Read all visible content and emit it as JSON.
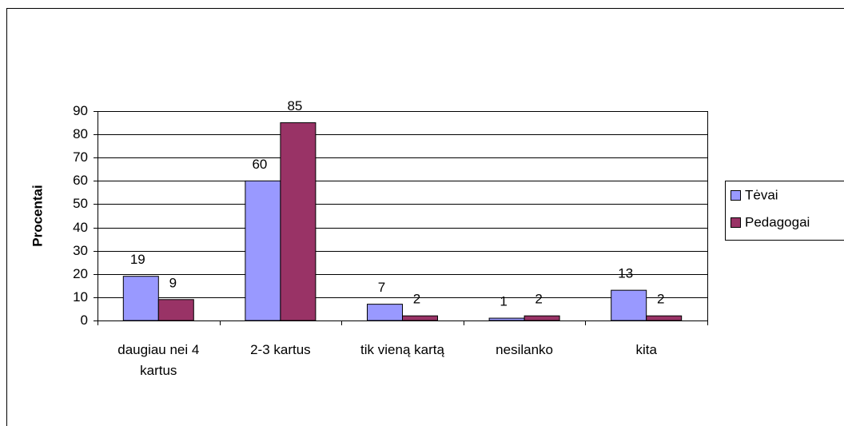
{
  "chart_data": {
    "type": "bar",
    "categories": [
      "daugiau nei 4 kartus",
      "2-3 kartus",
      "tik vieną kartą",
      "nesilanko",
      "kita"
    ],
    "series": [
      {
        "name": "Tėvai",
        "color": "#9999ff",
        "values": [
          19,
          60,
          7,
          1,
          13
        ]
      },
      {
        "name": "Pedagogai",
        "color": "#993366",
        "values": [
          9,
          85,
          2,
          2,
          2
        ]
      }
    ],
    "ylabel": "Procentai",
    "ylim": [
      0,
      90
    ],
    "yticks": [
      0,
      10,
      20,
      30,
      40,
      50,
      60,
      70,
      80,
      90
    ],
    "grid": true,
    "legend": "right"
  }
}
